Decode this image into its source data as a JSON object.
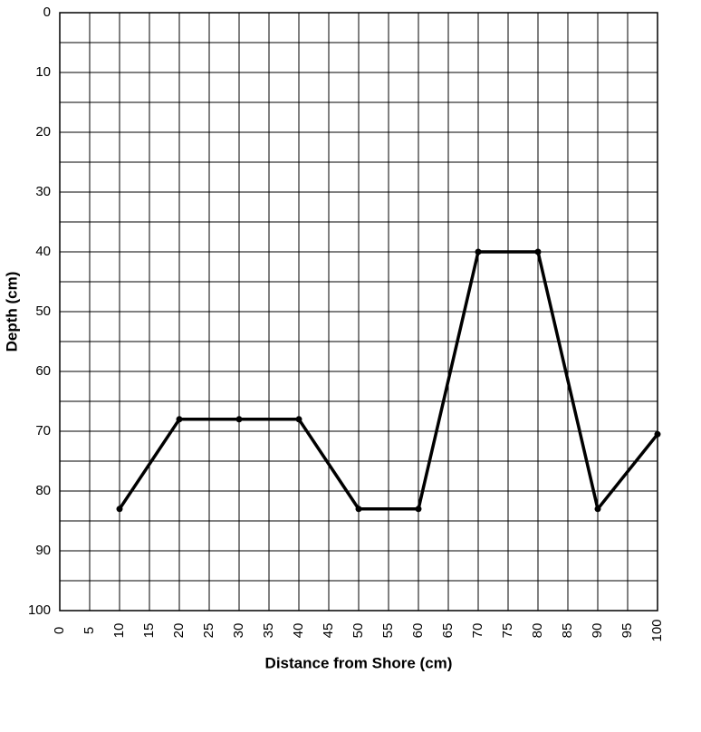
{
  "chart_data": {
    "type": "line",
    "x_label": "Distance from Shore (cm)",
    "y_label": "Depth (cm)",
    "x": [
      10,
      20,
      30,
      40,
      50,
      60,
      70,
      80,
      90,
      100
    ],
    "values": [
      83,
      68,
      68,
      68,
      83,
      83,
      40,
      40,
      83,
      70.5
    ],
    "color": "#000000",
    "markers": true,
    "xlim": [
      0,
      100
    ],
    "xticks": [
      0,
      5,
      10,
      15,
      20,
      25,
      30,
      35,
      40,
      45,
      50,
      55,
      60,
      65,
      70,
      75,
      80,
      85,
      90,
      95,
      100
    ],
    "ylim": [
      0,
      100
    ],
    "y_inverted": true,
    "yticks": [
      0,
      10,
      20,
      30,
      40,
      50,
      60,
      70,
      80,
      90,
      100
    ],
    "y_minor_ticks": [
      5,
      15,
      25,
      35,
      45,
      55,
      65,
      75,
      85,
      95
    ],
    "grid": true
  }
}
